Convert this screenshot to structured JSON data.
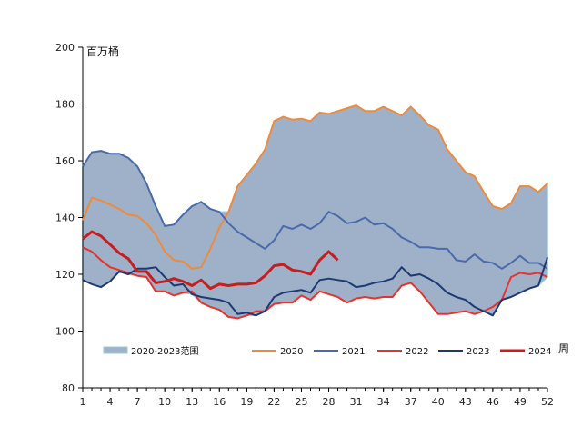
{
  "chart_data": {
    "type": "line",
    "ylabel": "百万桶",
    "xlabel": "周",
    "xlim": [
      1,
      52
    ],
    "ylim": [
      80,
      200
    ],
    "yticks": [
      80,
      100,
      120,
      140,
      160,
      180,
      200
    ],
    "xticks": [
      1,
      4,
      7,
      10,
      13,
      16,
      19,
      22,
      25,
      28,
      31,
      34,
      37,
      40,
      43,
      46,
      49,
      52
    ],
    "grid": false,
    "legend_position": "bottom",
    "range_band": {
      "name": "2020-2023范围",
      "color": "#9fb1c9",
      "edge_color": "#9fc7d4"
    },
    "series": [
      {
        "name": "2020",
        "color": "#ee8a3a",
        "values": [
          139,
          147,
          146,
          144.5,
          143,
          141,
          140.5,
          138,
          134,
          128,
          125,
          124.5,
          122,
          122.5,
          129,
          136.5,
          142,
          151,
          155,
          159,
          164,
          174,
          175.5,
          174.5,
          174.8,
          174,
          177,
          176.5,
          177.5,
          178.5,
          179.5,
          177.5,
          177.5,
          179,
          177.5,
          176,
          179,
          176,
          172.5,
          171,
          164,
          160,
          156,
          154.5,
          149,
          144,
          143,
          145,
          151,
          151,
          149,
          152
        ]
      },
      {
        "name": "2021",
        "color": "#4a6aaa",
        "values": [
          158,
          163,
          163.5,
          162.5,
          162.5,
          161,
          158,
          152,
          144,
          137,
          137.5,
          141,
          144,
          145.5,
          143,
          142,
          138,
          135,
          133,
          131,
          129,
          132,
          137,
          136,
          137.5,
          136,
          138,
          142,
          140.5,
          138,
          138.5,
          140,
          137.5,
          138,
          136,
          133,
          131.5,
          129.5,
          129.5,
          129,
          129,
          125,
          124.5,
          127,
          124.5,
          124,
          122,
          124,
          126.5,
          124,
          124,
          122
        ]
      },
      {
        "name": "2022",
        "color": "#e8322d",
        "values": [
          129.5,
          128,
          125,
          122.5,
          121.5,
          120.5,
          119.5,
          119,
          114,
          114,
          112.5,
          113.5,
          114,
          110,
          108.5,
          107.5,
          105,
          104.5,
          105.5,
          107,
          107,
          109.5,
          110,
          110,
          112.5,
          111,
          114,
          113,
          112,
          110,
          111.5,
          112,
          111.5,
          112,
          112,
          116,
          117,
          114,
          110,
          106,
          106,
          106.5,
          107,
          106,
          107,
          108.5,
          111,
          119,
          120.5,
          120,
          120.5,
          119
        ]
      },
      {
        "name": "2023",
        "color": "#1d3a72",
        "values": [
          118,
          116.5,
          115.5,
          117.5,
          121,
          120,
          122,
          122,
          122.5,
          119,
          116,
          116.5,
          113,
          112,
          111.5,
          111,
          110,
          106,
          106.5,
          105.5,
          107,
          112,
          113.5,
          114,
          114.5,
          113.5,
          118,
          118.5,
          118,
          117.5,
          115.5,
          116,
          117,
          117.5,
          118.5,
          122.5,
          119.5,
          120,
          118.5,
          116.5,
          113.5,
          112,
          111,
          108.5,
          107,
          105.5,
          111,
          112,
          113.5,
          115,
          116,
          126
        ]
      },
      {
        "name": "2024",
        "color": "#c41e1e",
        "values": [
          132.5,
          135,
          133.5,
          130.5,
          127.5,
          125.5,
          121,
          121,
          117,
          117.5,
          118.5,
          117.5,
          116,
          118,
          115,
          116.5,
          116,
          116.5,
          116.5,
          117,
          119.5,
          123,
          123.5,
          121.5,
          121,
          120,
          125,
          128,
          125
        ]
      }
    ]
  }
}
